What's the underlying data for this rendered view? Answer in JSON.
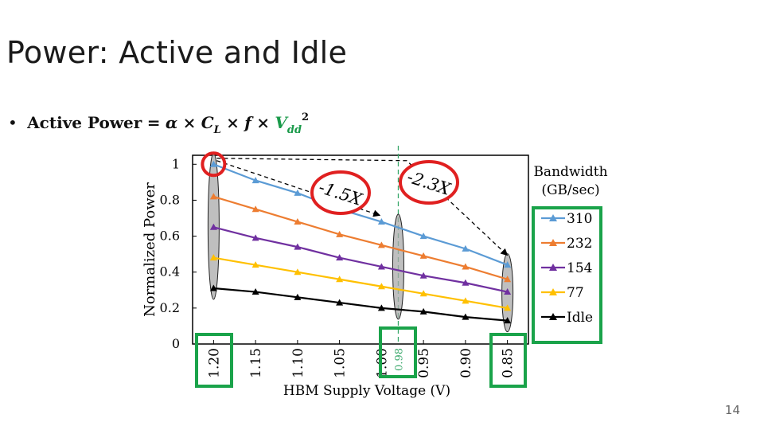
{
  "slide": {
    "title": "Power: Active and Idle",
    "bullet": "•",
    "equation": {
      "lhs": "Active Power",
      "eq": "=",
      "alpha": "α",
      "times1": "×",
      "c": "C",
      "c_sub": "L",
      "times2": "×",
      "f": "f",
      "times3": "×",
      "v": "V",
      "v_sub": "dd",
      "v_sup": "2"
    },
    "page_number": "14"
  },
  "chart_data": {
    "type": "line",
    "xlabel": "HBM Supply Voltage (V)",
    "ylabel": "Normalized Power",
    "x": [
      1.2,
      1.15,
      1.1,
      1.05,
      1.0,
      0.95,
      0.9,
      0.85
    ],
    "x_tick_labels": [
      "1.20",
      "1.15",
      "1.10",
      "1.05",
      "1.00",
      "0.95",
      "0.90",
      "0.85"
    ],
    "xlim": [
      1.225,
      0.825
    ],
    "x_reversed": true,
    "ylim": [
      0,
      1.05
    ],
    "y_ticks": [
      0,
      0.2,
      0.4,
      0.6,
      0.8,
      1
    ],
    "y_tick_labels": [
      "0",
      "0.2",
      "0.4",
      "0.6",
      "0.8",
      "1"
    ],
    "legend_title": "Bandwidth (GB/sec)",
    "legend_title_lines": [
      "Bandwidth",
      "(GB/sec)"
    ],
    "legend_placement": "right",
    "grid": false,
    "series": [
      {
        "name": "310",
        "color": "#5b9bd5",
        "values": [
          1.0,
          0.91,
          0.84,
          0.75,
          0.68,
          0.6,
          0.53,
          0.44
        ]
      },
      {
        "name": "232",
        "color": "#ed7d31",
        "values": [
          0.82,
          0.75,
          0.68,
          0.61,
          0.55,
          0.49,
          0.43,
          0.36
        ]
      },
      {
        "name": "154",
        "color": "#7030a0",
        "values": [
          0.65,
          0.59,
          0.54,
          0.48,
          0.43,
          0.38,
          0.34,
          0.29
        ]
      },
      {
        "name": "77",
        "color": "#ffc000",
        "values": [
          0.48,
          0.44,
          0.4,
          0.36,
          0.32,
          0.28,
          0.24,
          0.2
        ]
      },
      {
        "name": "Idle",
        "color": "#000000",
        "values": [
          0.31,
          0.29,
          0.26,
          0.23,
          0.2,
          0.18,
          0.15,
          0.13
        ]
      }
    ],
    "reference_line": {
      "x": 0.98,
      "label": "0.98",
      "color": "#3aa86b"
    },
    "annotations": [
      {
        "text": "-1.5X",
        "from_x": 1.2,
        "to_x": 1.0
      },
      {
        "text": "-2.3X",
        "from_x": 1.2,
        "to_x": 0.85
      }
    ],
    "highlighted_voltages": [
      1.2,
      0.98,
      0.85
    ],
    "colors": {
      "highlight_red": "#e02020",
      "highlight_green": "#1aa34a",
      "ellipse_fill": "#a9a9a9"
    }
  }
}
